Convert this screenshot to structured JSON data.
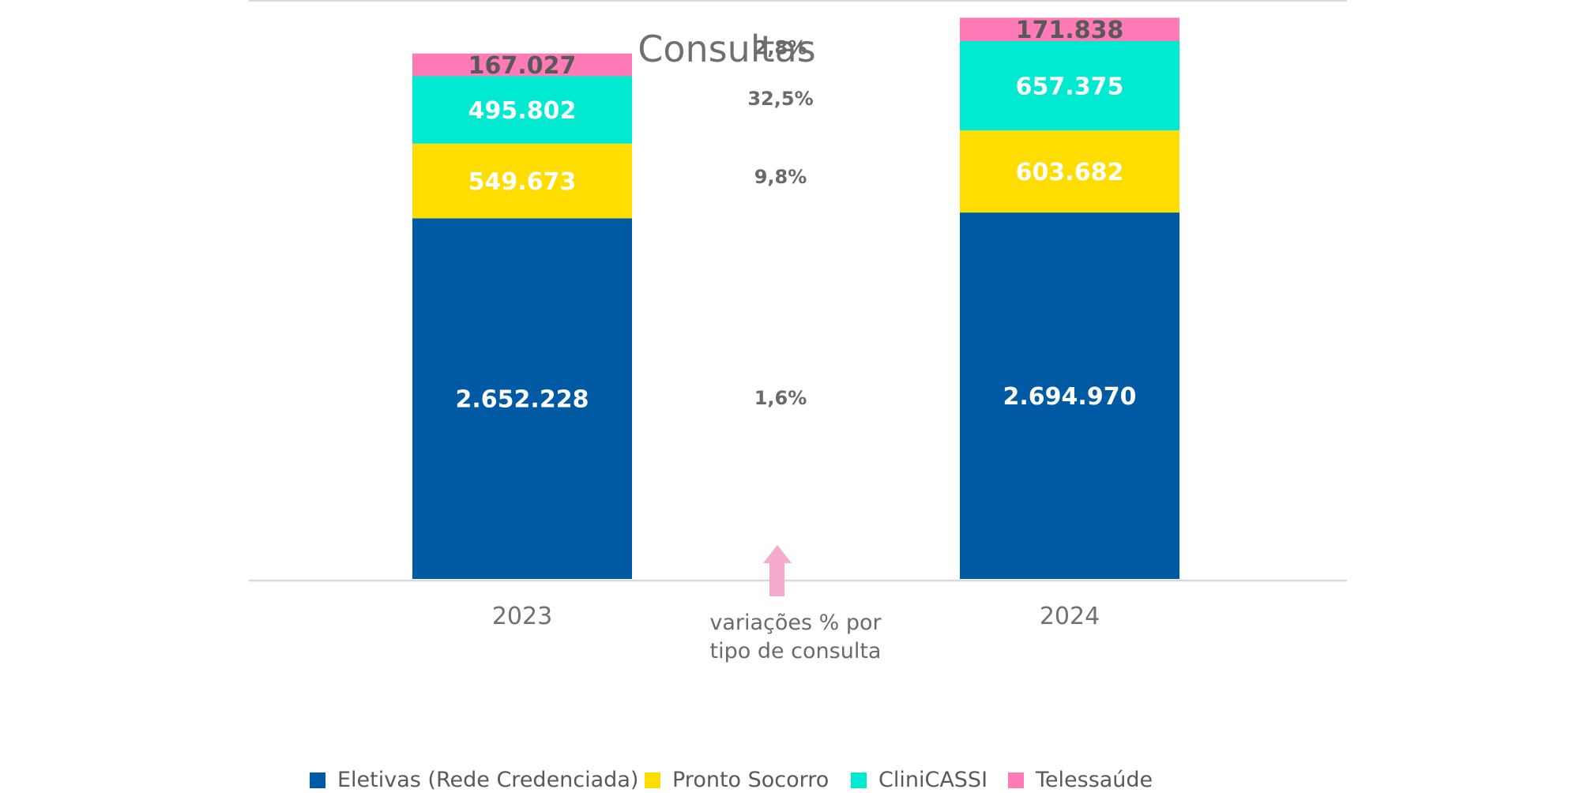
{
  "chart_data": {
    "type": "bar",
    "stacked": true,
    "title": "Consultas",
    "categories": [
      "2023",
      "2024"
    ],
    "series": [
      {
        "name": "Eletivas (Rede Credenciada)",
        "values": [
          2652228,
          2694970
        ],
        "labels": [
          "2.652.228",
          "2.694.970"
        ],
        "color": "#005aa3",
        "label_color": "#ffffff",
        "variation": "1,6%"
      },
      {
        "name": "Pronto Socorro",
        "values": [
          549673,
          603682
        ],
        "labels": [
          "549.673",
          "603.682"
        ],
        "color": "#ffdd00",
        "label_color": "#ffffff",
        "variation": "9,8%"
      },
      {
        "name": "CliniCASSI",
        "values": [
          495802,
          657375
        ],
        "labels": [
          "495.802",
          "657.375"
        ],
        "color": "#00ead2",
        "label_color": "#ffffff",
        "variation": "32,5%"
      },
      {
        "name": "Telessaúde",
        "values": [
          167027,
          171838
        ],
        "labels": [
          "167.027",
          "171.838"
        ],
        "color": "#ff7bb7",
        "label_color": "#595959",
        "variation": "2,8%"
      }
    ],
    "annotation": {
      "lines": [
        "variações % por",
        "tipo de consulta"
      ],
      "arrow_color": "#f6aacb"
    },
    "ylim": [
      0,
      4200000
    ],
    "grid": false,
    "legend_position": "bottom",
    "xlabel": "",
    "ylabel": ""
  }
}
